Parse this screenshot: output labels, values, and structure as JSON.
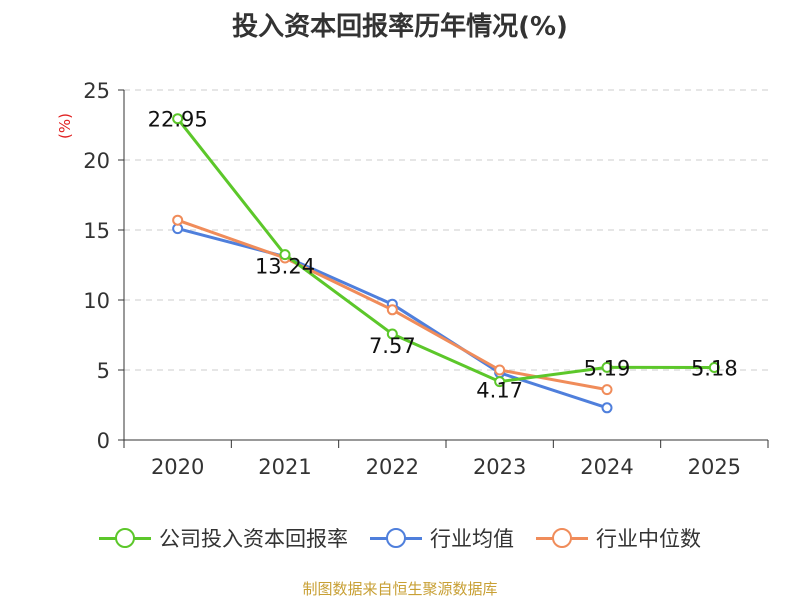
{
  "chart_data": {
    "type": "line",
    "title": "投入资本回报率历年情况(%)",
    "ylabel": "(%)",
    "xlabel": "",
    "categories": [
      "2020",
      "2021",
      "2022",
      "2023",
      "2024",
      "2025"
    ],
    "ylim": [
      0,
      25
    ],
    "yticks": [
      0,
      5,
      10,
      15,
      20,
      25
    ],
    "grid": true,
    "legend_position": "bottom",
    "series": [
      {
        "name": "公司投入资本回报率",
        "color": "#5cc72a",
        "values": [
          22.95,
          13.24,
          7.57,
          4.17,
          5.19,
          5.18
        ],
        "labels": [
          "22.95",
          "13.24",
          "7.57",
          "4.17",
          "5.19",
          "5.18"
        ]
      },
      {
        "name": "行业均值",
        "color": "#4f7fdc",
        "values": [
          15.1,
          13.1,
          9.7,
          4.8,
          2.3,
          null
        ]
      },
      {
        "name": "行业中位数",
        "color": "#f08c5a",
        "values": [
          15.7,
          13.0,
          9.3,
          5.0,
          3.6,
          null
        ]
      }
    ]
  },
  "source": "制图数据来自恒生聚源数据库"
}
